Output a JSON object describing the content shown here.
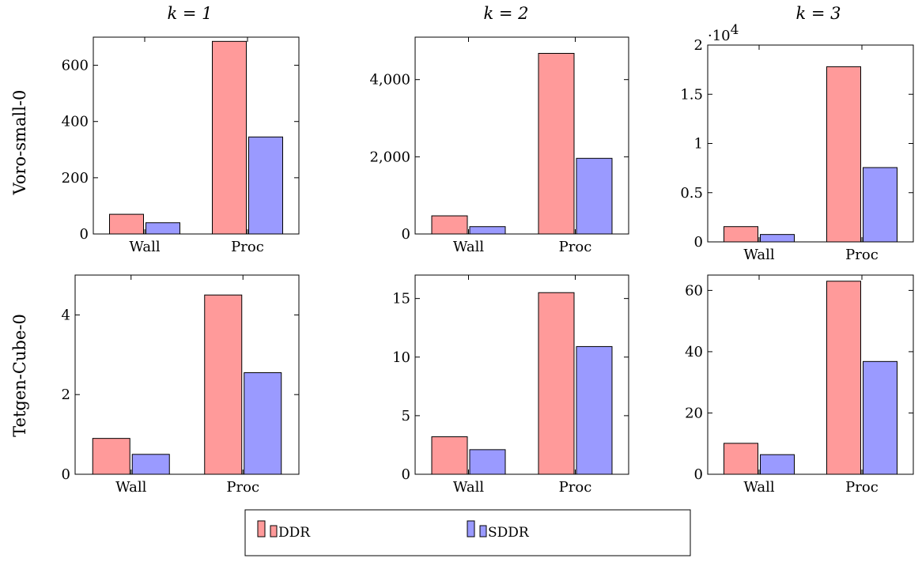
{
  "column_titles": [
    "k = 1",
    "k = 2",
    "k = 3"
  ],
  "row_labels": [
    "Voro-small-0",
    "Tetgen-Cube-0"
  ],
  "legend": {
    "entries": [
      {
        "label": "DDR",
        "color": "#ff9a9a"
      },
      {
        "label": "SDDR",
        "color": "#9a9aff"
      }
    ]
  },
  "chart_data": [
    {
      "type": "bar",
      "row": "Voro-small-0",
      "column": "k = 1",
      "categories": [
        "Wall",
        "Proc"
      ],
      "series": [
        {
          "name": "DDR",
          "values": [
            70,
            685
          ]
        },
        {
          "name": "SDDR",
          "values": [
            40,
            345
          ]
        }
      ],
      "ylim": [
        0,
        700
      ],
      "yticks": [
        0,
        200,
        400,
        600
      ],
      "ytick_labels": [
        "0",
        "200",
        "400",
        "600"
      ],
      "scale_label": ""
    },
    {
      "type": "bar",
      "row": "Voro-small-0",
      "column": "k = 2",
      "categories": [
        "Wall",
        "Proc"
      ],
      "series": [
        {
          "name": "DDR",
          "values": [
            470,
            4680
          ]
        },
        {
          "name": "SDDR",
          "values": [
            190,
            1960
          ]
        }
      ],
      "ylim": [
        0,
        5100
      ],
      "yticks": [
        0,
        2000,
        4000
      ],
      "ytick_labels": [
        "0",
        "2,000",
        "4,000"
      ],
      "scale_label": ""
    },
    {
      "type": "bar",
      "row": "Voro-small-0",
      "column": "k = 3",
      "categories": [
        "Wall",
        "Proc"
      ],
      "series": [
        {
          "name": "DDR",
          "values": [
            1.55,
            17.8
          ]
        },
        {
          "name": "SDDR",
          "values": [
            0.75,
            7.55
          ]
        }
      ],
      "ylim": [
        0,
        20
      ],
      "yticks": [
        0,
        5,
        10,
        15,
        20
      ],
      "ytick_labels": [
        "0",
        "0.5",
        "1",
        "1.5",
        "2"
      ],
      "scale_label": "·10",
      "scale_exponent": "4"
    },
    {
      "type": "bar",
      "row": "Tetgen-Cube-0",
      "column": "k = 1",
      "categories": [
        "Wall",
        "Proc"
      ],
      "series": [
        {
          "name": "DDR",
          "values": [
            0.9,
            4.5
          ]
        },
        {
          "name": "SDDR",
          "values": [
            0.5,
            2.55
          ]
        }
      ],
      "ylim": [
        0,
        5
      ],
      "yticks": [
        0,
        2,
        4
      ],
      "ytick_labels": [
        "0",
        "2",
        "4"
      ],
      "scale_label": ""
    },
    {
      "type": "bar",
      "row": "Tetgen-Cube-0",
      "column": "k = 2",
      "categories": [
        "Wall",
        "Proc"
      ],
      "series": [
        {
          "name": "DDR",
          "values": [
            3.2,
            15.5
          ]
        },
        {
          "name": "SDDR",
          "values": [
            2.1,
            10.9
          ]
        }
      ],
      "ylim": [
        0,
        17
      ],
      "yticks": [
        0,
        5,
        10,
        15
      ],
      "ytick_labels": [
        "0",
        "5",
        "10",
        "15"
      ],
      "scale_label": ""
    },
    {
      "type": "bar",
      "row": "Tetgen-Cube-0",
      "column": "k = 3",
      "categories": [
        "Wall",
        "Proc"
      ],
      "series": [
        {
          "name": "DDR",
          "values": [
            10.1,
            63
          ]
        },
        {
          "name": "SDDR",
          "values": [
            6.4,
            36.8
          ]
        }
      ],
      "ylim": [
        0,
        65
      ],
      "yticks": [
        0,
        20,
        40,
        60
      ],
      "ytick_labels": [
        "0",
        "20",
        "40",
        "60"
      ],
      "scale_label": ""
    }
  ]
}
